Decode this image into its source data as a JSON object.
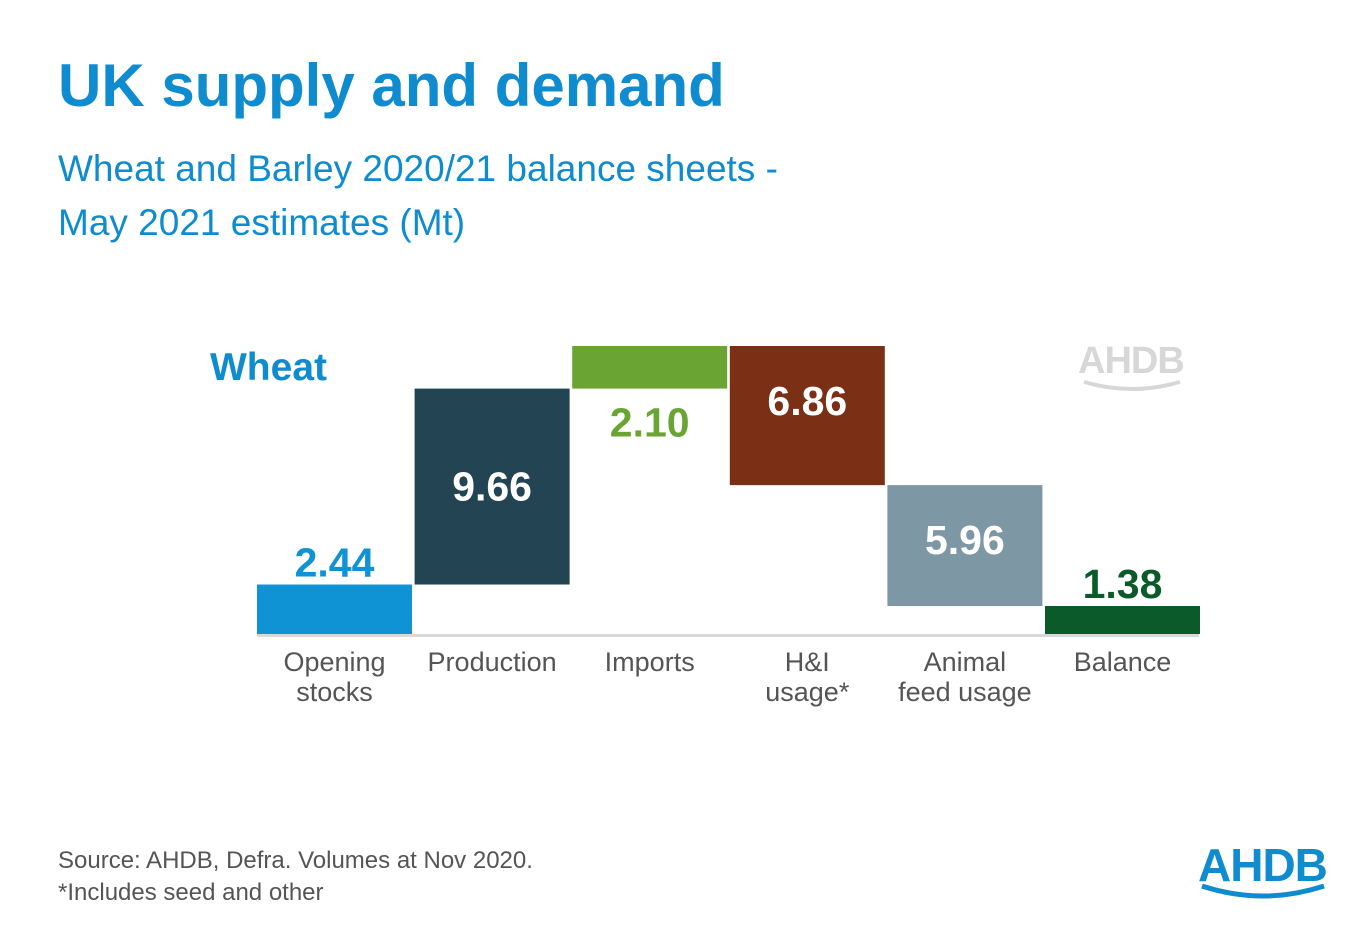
{
  "header": {
    "title": "UK supply and demand",
    "subtitle_line1": "Wheat and Barley 2020/21 balance sheets -",
    "subtitle_line2": "May 2021 estimates (Mt)"
  },
  "chart_data": {
    "type": "waterfall",
    "series_label": "Wheat",
    "categories": [
      [
        "Opening",
        "stocks"
      ],
      [
        "Production"
      ],
      [
        "Imports"
      ],
      [
        "H&I",
        "usage*"
      ],
      [
        "Animal",
        "feed usage"
      ],
      [
        "Balance"
      ]
    ],
    "values": [
      2.44,
      9.66,
      2.1,
      -6.86,
      -5.96,
      1.38
    ],
    "value_labels": [
      "2.44",
      "9.66",
      "2.10",
      "6.86",
      "5.96",
      "1.38"
    ],
    "bar_kinds": [
      "start",
      "increase",
      "increase",
      "decrease",
      "decrease",
      "total"
    ],
    "colors": [
      "#0f93d4",
      "#234452",
      "#6aa534",
      "#7b2f14",
      "#7d98a4",
      "#0b5a2a"
    ],
    "label_colors": [
      "#0f93d4",
      "#ffffff",
      "#6aa534",
      "#ffffff",
      "#ffffff",
      "#0b5a2a"
    ],
    "ylim": [
      0,
      14.2
    ]
  },
  "footer": {
    "source": "Source: AHDB, Defra. Volumes at Nov 2020.",
    "note": "*Includes seed and other"
  },
  "logos": {
    "watermark": "AHDB",
    "brand": "AHDB"
  },
  "colors": {
    "accent": "#0f8ccf",
    "axis": "#d9d9d9"
  }
}
